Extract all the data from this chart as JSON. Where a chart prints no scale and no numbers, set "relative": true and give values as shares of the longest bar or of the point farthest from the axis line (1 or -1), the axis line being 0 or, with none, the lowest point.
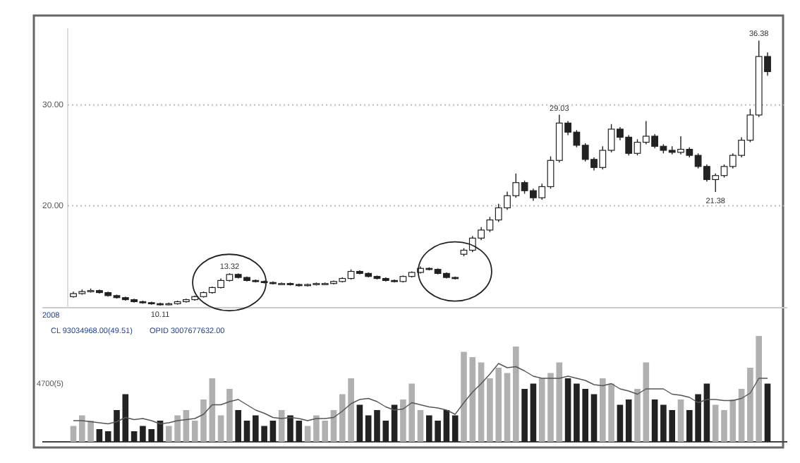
{
  "chart_data": [
    {
      "type": "candlestick",
      "color": "#222222",
      "ylim": [
        9.9,
        37.6
      ],
      "yticks": [
        {
          "value": 20,
          "label": "20.00"
        },
        {
          "value": 30,
          "label": "30.00"
        }
      ],
      "grid": "y",
      "tick_labels": "y",
      "categories": [
        null,
        null,
        null,
        null,
        null,
        null,
        null,
        null,
        null,
        null,
        null,
        null,
        null,
        null,
        null,
        null,
        null,
        null,
        null,
        null,
        null,
        null,
        null,
        null,
        null,
        null,
        null,
        null,
        null,
        null,
        null,
        null,
        null,
        null,
        null,
        null,
        null,
        null,
        null,
        null,
        null,
        null,
        null,
        null,
        null,
        null,
        null,
        null,
        null,
        null,
        null,
        null,
        null,
        null,
        null,
        null,
        null,
        null,
        null,
        null,
        null,
        null,
        null,
        null,
        null,
        null,
        null,
        null,
        null,
        null,
        null,
        null,
        null,
        null,
        null,
        null,
        null,
        null,
        null,
        null,
        null
      ],
      "ohlc": [
        [
          11.0,
          11.5,
          10.9,
          11.3
        ],
        [
          11.3,
          11.7,
          11.2,
          11.5
        ],
        [
          11.5,
          11.8,
          11.4,
          11.6
        ],
        [
          11.6,
          11.7,
          11.3,
          11.4
        ],
        [
          11.4,
          11.5,
          11.0,
          11.1
        ],
        [
          11.1,
          11.2,
          10.8,
          10.9
        ],
        [
          10.9,
          11.0,
          10.6,
          10.7
        ],
        [
          10.7,
          10.8,
          10.4,
          10.5
        ],
        [
          10.5,
          10.6,
          10.3,
          10.4
        ],
        [
          10.4,
          10.5,
          10.2,
          10.3
        ],
        [
          10.3,
          10.4,
          10.11,
          10.2
        ],
        [
          10.2,
          10.4,
          10.15,
          10.3
        ],
        [
          10.3,
          10.6,
          10.2,
          10.5
        ],
        [
          10.5,
          10.8,
          10.4,
          10.7
        ],
        [
          10.7,
          11.1,
          10.6,
          11.0
        ],
        [
          11.0,
          11.5,
          10.9,
          11.4
        ],
        [
          11.4,
          12.0,
          11.3,
          11.9
        ],
        [
          11.9,
          12.8,
          11.8,
          12.6
        ],
        [
          12.6,
          13.32,
          12.5,
          13.2
        ],
        [
          13.2,
          13.3,
          12.8,
          12.9
        ],
        [
          12.9,
          13.0,
          12.5,
          12.6
        ],
        [
          12.6,
          12.7,
          12.4,
          12.5
        ],
        [
          12.5,
          12.6,
          12.3,
          12.4
        ],
        [
          12.4,
          12.5,
          12.2,
          12.3
        ],
        [
          12.3,
          12.4,
          12.2,
          12.3
        ],
        [
          12.3,
          12.4,
          12.1,
          12.2
        ],
        [
          12.2,
          12.3,
          12.0,
          12.1
        ],
        [
          12.1,
          12.3,
          12.0,
          12.2
        ],
        [
          12.2,
          12.4,
          12.1,
          12.3
        ],
        [
          12.3,
          12.4,
          12.2,
          12.3
        ],
        [
          12.3,
          12.6,
          12.2,
          12.5
        ],
        [
          12.5,
          12.9,
          12.4,
          12.8
        ],
        [
          12.8,
          13.7,
          12.7,
          13.5
        ],
        [
          13.5,
          13.6,
          13.2,
          13.3
        ],
        [
          13.3,
          13.4,
          12.9,
          13.0
        ],
        [
          13.0,
          13.1,
          12.7,
          12.8
        ],
        [
          12.8,
          12.9,
          12.5,
          12.6
        ],
        [
          12.6,
          12.7,
          12.4,
          12.5
        ],
        [
          12.5,
          13.1,
          12.4,
          13.0
        ],
        [
          13.0,
          13.5,
          12.9,
          13.4
        ],
        [
          13.4,
          14.0,
          13.3,
          13.8
        ],
        [
          13.8,
          13.9,
          13.6,
          13.7
        ],
        [
          13.7,
          13.8,
          13.2,
          13.3
        ],
        [
          13.3,
          13.4,
          12.8,
          12.9
        ],
        [
          12.9,
          13.0,
          12.7,
          12.8
        ],
        [
          15.2,
          15.8,
          15.0,
          15.6
        ],
        [
          15.6,
          17.0,
          15.4,
          16.8
        ],
        [
          16.8,
          17.9,
          16.6,
          17.6
        ],
        [
          17.6,
          18.9,
          17.4,
          18.6
        ],
        [
          18.6,
          20.2,
          18.4,
          19.8
        ],
        [
          19.8,
          21.4,
          19.6,
          21.0
        ],
        [
          21.0,
          23.2,
          20.8,
          22.3
        ],
        [
          22.3,
          22.5,
          21.2,
          21.5
        ],
        [
          21.5,
          21.7,
          20.5,
          20.8
        ],
        [
          20.8,
          22.2,
          20.6,
          21.9
        ],
        [
          21.9,
          24.9,
          21.7,
          24.5
        ],
        [
          24.5,
          29.03,
          24.3,
          28.2
        ],
        [
          28.2,
          28.4,
          27.0,
          27.3
        ],
        [
          27.3,
          27.5,
          25.8,
          26.0
        ],
        [
          26.0,
          26.2,
          24.4,
          24.6
        ],
        [
          24.6,
          24.8,
          23.5,
          23.8
        ],
        [
          23.8,
          25.9,
          23.6,
          25.5
        ],
        [
          25.5,
          28.1,
          25.3,
          27.6
        ],
        [
          27.6,
          27.8,
          26.5,
          26.8
        ],
        [
          26.8,
          27.0,
          25.0,
          25.2
        ],
        [
          25.2,
          26.6,
          25.0,
          26.3
        ],
        [
          26.3,
          28.4,
          26.1,
          26.9
        ],
        [
          26.9,
          27.1,
          25.7,
          25.9
        ],
        [
          25.9,
          26.1,
          25.2,
          25.5
        ],
        [
          25.5,
          25.9,
          25.1,
          25.3
        ],
        [
          25.3,
          26.9,
          25.1,
          25.6
        ],
        [
          25.6,
          25.8,
          24.8,
          25.0
        ],
        [
          25.0,
          25.2,
          23.7,
          23.9
        ],
        [
          23.9,
          24.1,
          22.4,
          22.6
        ],
        [
          22.6,
          23.2,
          21.38,
          23.0
        ],
        [
          23.0,
          24.1,
          22.8,
          23.9
        ],
        [
          23.9,
          25.2,
          23.7,
          25.0
        ],
        [
          25.0,
          26.8,
          24.8,
          26.5
        ],
        [
          26.5,
          29.6,
          26.3,
          29.0
        ],
        [
          29.0,
          36.38,
          28.8,
          34.8
        ],
        [
          34.8,
          35.2,
          32.9,
          33.3
        ]
      ],
      "annotations": [
        {
          "text": "10.11",
          "y": 10.11
        },
        {
          "text": "13.32",
          "y": 13.32
        },
        {
          "text": "29.03",
          "y": 29.03
        },
        {
          "text": "36.38",
          "y": 36.38
        },
        {
          "text": "21.38",
          "y": 21.38
        },
        "2008"
      ]
    },
    {
      "type": "bar",
      "relative": true,
      "categories": [
        null,
        null,
        null,
        null,
        null,
        null,
        null,
        null,
        null,
        null,
        null,
        null,
        null,
        null,
        null,
        null,
        null,
        null,
        null,
        null,
        null,
        null,
        null,
        null,
        null,
        null,
        null,
        null,
        null,
        null,
        null,
        null,
        null,
        null,
        null,
        null,
        null,
        null,
        null,
        null,
        null,
        null,
        null,
        null,
        null,
        null,
        null,
        null,
        null,
        null,
        null,
        null,
        null,
        null,
        null,
        null,
        null,
        null,
        null,
        null,
        null,
        null,
        null,
        null,
        null,
        null,
        null,
        null,
        null,
        null,
        null,
        null,
        null,
        null,
        null,
        null,
        null,
        null,
        null,
        null,
        null
      ],
      "series": [
        {
          "type": "bar",
          "values": [
            0.15,
            0.25,
            0.2,
            0.12,
            0.1,
            0.3,
            0.45,
            0.1,
            0.15,
            0.12,
            0.2,
            0.15,
            0.25,
            0.3,
            0.2,
            0.4,
            0.6,
            0.25,
            0.5,
            0.3,
            0.2,
            0.25,
            0.15,
            0.2,
            0.3,
            0.25,
            0.2,
            0.15,
            0.25,
            0.2,
            0.3,
            0.45,
            0.6,
            0.35,
            0.25,
            0.3,
            0.2,
            0.35,
            0.4,
            0.55,
            0.3,
            0.25,
            0.2,
            0.3,
            0.25,
            0.85,
            0.8,
            0.75,
            0.6,
            0.7,
            0.65,
            0.9,
            0.5,
            0.55,
            0.6,
            0.65,
            0.75,
            0.6,
            0.55,
            0.5,
            0.45,
            0.6,
            0.55,
            0.35,
            0.4,
            0.5,
            0.75,
            0.4,
            0.35,
            0.3,
            0.4,
            0.3,
            0.45,
            0.55,
            0.35,
            0.3,
            0.4,
            0.5,
            0.7,
            1,
            0.55
          ],
          "colors": [
            "#b0b0b0",
            "#b0b0b0",
            "#b0b0b0",
            "#222222",
            "#222222",
            "#222222",
            "#222222",
            "#222222",
            "#222222",
            "#222222",
            "#222222",
            "#b0b0b0",
            "#b0b0b0",
            "#b0b0b0",
            "#b0b0b0",
            "#b0b0b0",
            "#b0b0b0",
            "#b0b0b0",
            "#b0b0b0",
            "#222222",
            "#222222",
            "#222222",
            "#222222",
            "#222222",
            "#b0b0b0",
            "#222222",
            "#222222",
            "#b0b0b0",
            "#b0b0b0",
            "#b0b0b0",
            "#b0b0b0",
            "#b0b0b0",
            "#b0b0b0",
            "#222222",
            "#222222",
            "#222222",
            "#222222",
            "#222222",
            "#b0b0b0",
            "#b0b0b0",
            "#b0b0b0",
            "#222222",
            "#222222",
            "#222222",
            "#222222",
            "#b0b0b0",
            "#b0b0b0",
            "#b0b0b0",
            "#b0b0b0",
            "#b0b0b0",
            "#b0b0b0",
            "#b0b0b0",
            "#222222",
            "#222222",
            "#b0b0b0",
            "#b0b0b0",
            "#b0b0b0",
            "#222222",
            "#222222",
            "#222222",
            "#222222",
            "#b0b0b0",
            "#b0b0b0",
            "#222222",
            "#222222",
            "#b0b0b0",
            "#b0b0b0",
            "#222222",
            "#222222",
            "#222222",
            "#b0b0b0",
            "#222222",
            "#222222",
            "#222222",
            "#b0b0b0",
            "#b0b0b0",
            "#b0b0b0",
            "#b0b0b0",
            "#b0b0b0",
            "#b0b0b0",
            "#222222"
          ]
        },
        {
          "type": "line",
          "color": "#555555",
          "values": [
            0.2,
            0.2,
            0.19,
            0.18,
            0.17,
            0.19,
            0.23,
            0.21,
            0.22,
            0.2,
            0.17,
            0.18,
            0.2,
            0.21,
            0.22,
            0.26,
            0.35,
            0.35,
            0.38,
            0.4,
            0.35,
            0.3,
            0.27,
            0.23,
            0.22,
            0.23,
            0.22,
            0.2,
            0.22,
            0.22,
            0.23,
            0.29,
            0.36,
            0.4,
            0.41,
            0.38,
            0.33,
            0.3,
            0.31,
            0.37,
            0.35,
            0.33,
            0.32,
            0.3,
            0.26,
            0.37,
            0.47,
            0.55,
            0.64,
            0.74,
            0.7,
            0.71,
            0.67,
            0.62,
            0.6,
            0.6,
            0.6,
            0.62,
            0.6,
            0.58,
            0.54,
            0.53,
            0.55,
            0.5,
            0.48,
            0.45,
            0.5,
            0.5,
            0.5,
            0.45,
            0.44,
            0.42,
            0.37,
            0.4,
            0.4,
            0.39,
            0.39,
            0.41,
            0.46,
            0.6,
            0.6
          ]
        }
      ],
      "annotations": [
        "CL 93034968.00(49.51)",
        "OPID 3007677632.00",
        "4700(5)"
      ]
    }
  ]
}
